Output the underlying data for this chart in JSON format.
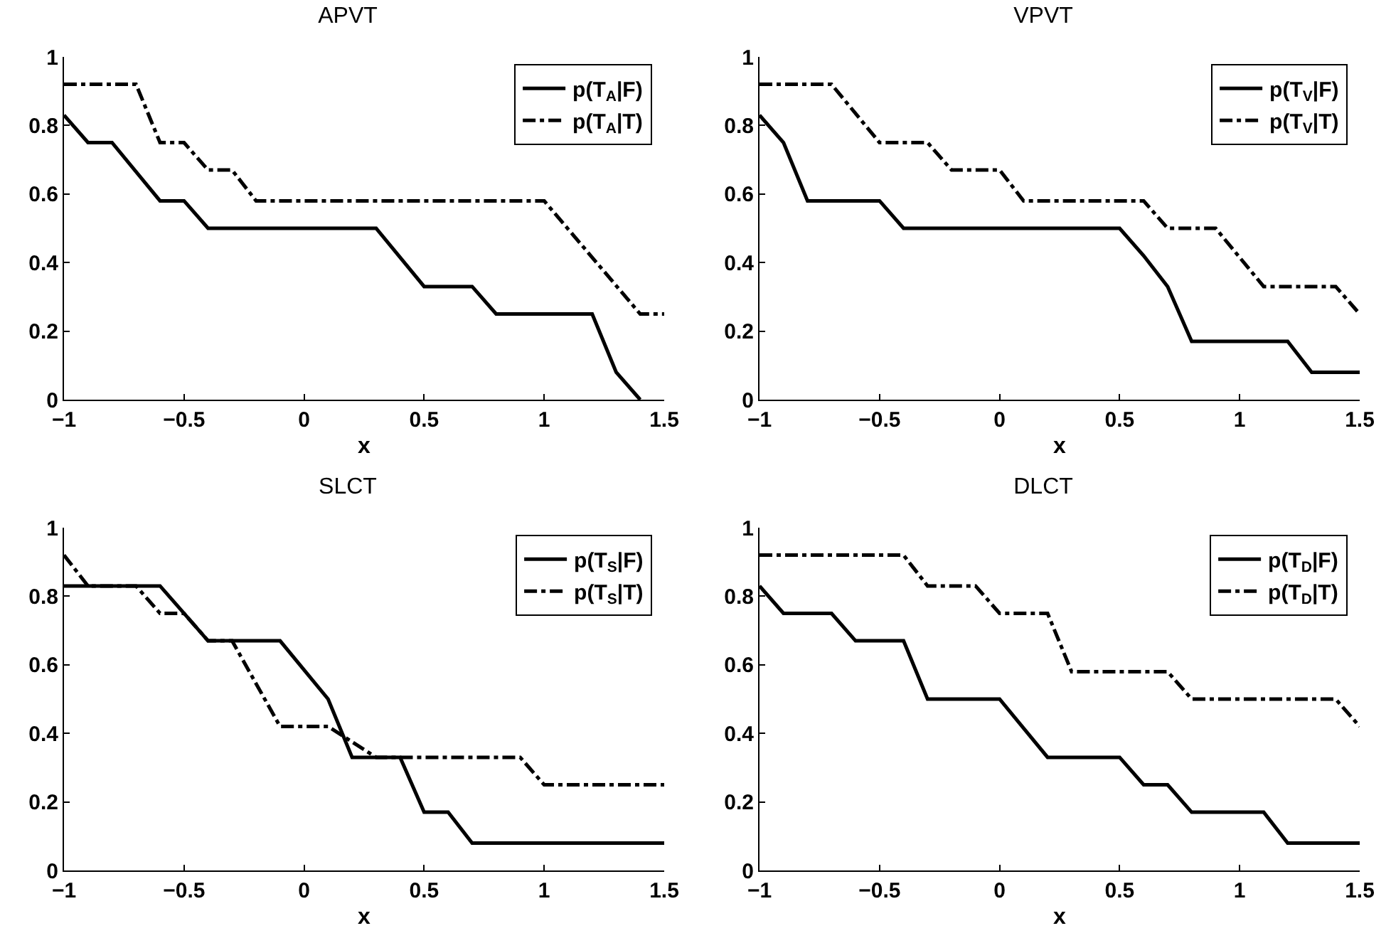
{
  "chart_data": [
    {
      "type": "line",
      "title": "APVT",
      "xlabel": "x",
      "xlim": [
        -1,
        1.5
      ],
      "xticks": [
        -1,
        -0.5,
        0,
        0.5,
        1,
        1.5
      ],
      "ylim": [
        0,
        1
      ],
      "yticks": [
        0,
        0.2,
        0.4,
        0.6,
        0.8,
        1
      ],
      "grid": false,
      "legend": "top right",
      "marker": "none",
      "series": [
        {
          "name": "p(T$_{A}$|F)",
          "color": "#000000",
          "line_style": "solid",
          "x": [
            -1,
            -0.9,
            -0.8,
            -0.6,
            -0.5,
            -0.4,
            0.3,
            0.5,
            0.7,
            0.8,
            1.2,
            1.3,
            1.4
          ],
          "values": [
            0.83,
            0.75,
            0.75,
            0.58,
            0.58,
            0.5,
            0.5,
            0.33,
            0.33,
            0.25,
            0.25,
            0.08,
            0
          ]
        },
        {
          "name": "p(T$_{A}$|T)",
          "color": "#000000",
          "line_style": "dashed",
          "x": [
            -1,
            -0.7,
            -0.6,
            -0.5,
            -0.4,
            -0.3,
            -0.2,
            1.0,
            1.4,
            1.5
          ],
          "values": [
            0.92,
            0.92,
            0.75,
            0.75,
            0.67,
            0.67,
            0.58,
            0.58,
            0.25,
            0.25
          ]
        }
      ]
    },
    {
      "type": "line",
      "title": "VPVT",
      "xlabel": "x",
      "xlim": [
        -1,
        1.5
      ],
      "xticks": [
        -1,
        -0.5,
        0,
        0.5,
        1,
        1.5
      ],
      "ylim": [
        0,
        1
      ],
      "yticks": [
        0,
        0.2,
        0.4,
        0.6,
        0.8,
        1
      ],
      "grid": false,
      "legend": "top right",
      "marker": "none",
      "series": [
        {
          "name": "p(T$_{V}$|F)",
          "color": "#000000",
          "line_style": "solid",
          "x": [
            -1,
            -0.9,
            -0.8,
            -0.5,
            -0.4,
            0.5,
            0.6,
            0.7,
            0.8,
            1.2,
            1.3,
            1.5
          ],
          "values": [
            0.83,
            0.75,
            0.58,
            0.58,
            0.5,
            0.5,
            0.42,
            0.33,
            0.17,
            0.17,
            0.08,
            0.08
          ]
        },
        {
          "name": "p(T$_{V}$|T)",
          "color": "#000000",
          "line_style": "dashed",
          "x": [
            -1,
            -0.7,
            -0.5,
            -0.3,
            -0.2,
            0,
            0.1,
            0.6,
            0.7,
            0.9,
            1.1,
            1.4,
            1.5
          ],
          "values": [
            0.92,
            0.92,
            0.75,
            0.75,
            0.67,
            0.67,
            0.58,
            0.58,
            0.5,
            0.5,
            0.33,
            0.33,
            0.25
          ]
        }
      ]
    },
    {
      "type": "line",
      "title": "SLCT",
      "xlabel": "x",
      "xlim": [
        -1,
        1.5
      ],
      "xticks": [
        -1,
        -0.5,
        0,
        0.5,
        1,
        1.5
      ],
      "ylim": [
        0,
        1
      ],
      "yticks": [
        0,
        0.2,
        0.4,
        0.6,
        0.8,
        1
      ],
      "grid": false,
      "legend": "top right",
      "marker": "none",
      "series": [
        {
          "name": "p(T$_{S}$|F)",
          "color": "#000000",
          "line_style": "solid",
          "x": [
            -1,
            -0.6,
            -0.4,
            -0.1,
            0.1,
            0.2,
            0.4,
            0.5,
            0.6,
            0.7,
            1.5
          ],
          "values": [
            0.83,
            0.83,
            0.67,
            0.67,
            0.5,
            0.33,
            0.33,
            0.17,
            0.17,
            0.08,
            0.08
          ]
        },
        {
          "name": "p(T$_{S}$|T)",
          "color": "#000000",
          "line_style": "dashed",
          "x": [
            -1,
            -0.9,
            -0.7,
            -0.6,
            -0.5,
            -0.4,
            -0.3,
            -0.1,
            0.1,
            0.3,
            0.9,
            1.0,
            1.5
          ],
          "values": [
            0.92,
            0.83,
            0.83,
            0.75,
            0.75,
            0.67,
            0.67,
            0.42,
            0.42,
            0.33,
            0.33,
            0.25,
            0.25
          ]
        }
      ]
    },
    {
      "type": "line",
      "title": "DLCT",
      "xlabel": "x",
      "xlim": [
        -1,
        1.5
      ],
      "xticks": [
        -1,
        -0.5,
        0,
        0.5,
        1,
        1.5
      ],
      "ylim": [
        0,
        1
      ],
      "yticks": [
        0,
        0.2,
        0.4,
        0.6,
        0.8,
        1
      ],
      "grid": false,
      "legend": "top right",
      "marker": "none",
      "series": [
        {
          "name": "p(T$_{D}$|F)",
          "color": "#000000",
          "line_style": "solid",
          "x": [
            -1,
            -0.9,
            -0.7,
            -0.6,
            -0.4,
            -0.3,
            0,
            0.2,
            0.5,
            0.6,
            0.7,
            0.8,
            1.1,
            1.2,
            1.5
          ],
          "values": [
            0.83,
            0.75,
            0.75,
            0.67,
            0.67,
            0.5,
            0.5,
            0.33,
            0.33,
            0.25,
            0.25,
            0.17,
            0.17,
            0.08,
            0.08
          ]
        },
        {
          "name": "p(T$_{D}$|T)",
          "color": "#000000",
          "line_style": "dashed",
          "x": [
            -1,
            -0.4,
            -0.3,
            -0.1,
            0,
            0.2,
            0.3,
            0.7,
            0.8,
            1.4,
            1.5
          ],
          "values": [
            0.92,
            0.92,
            0.83,
            0.83,
            0.75,
            0.75,
            0.58,
            0.58,
            0.5,
            0.5,
            0.42
          ]
        }
      ]
    }
  ]
}
